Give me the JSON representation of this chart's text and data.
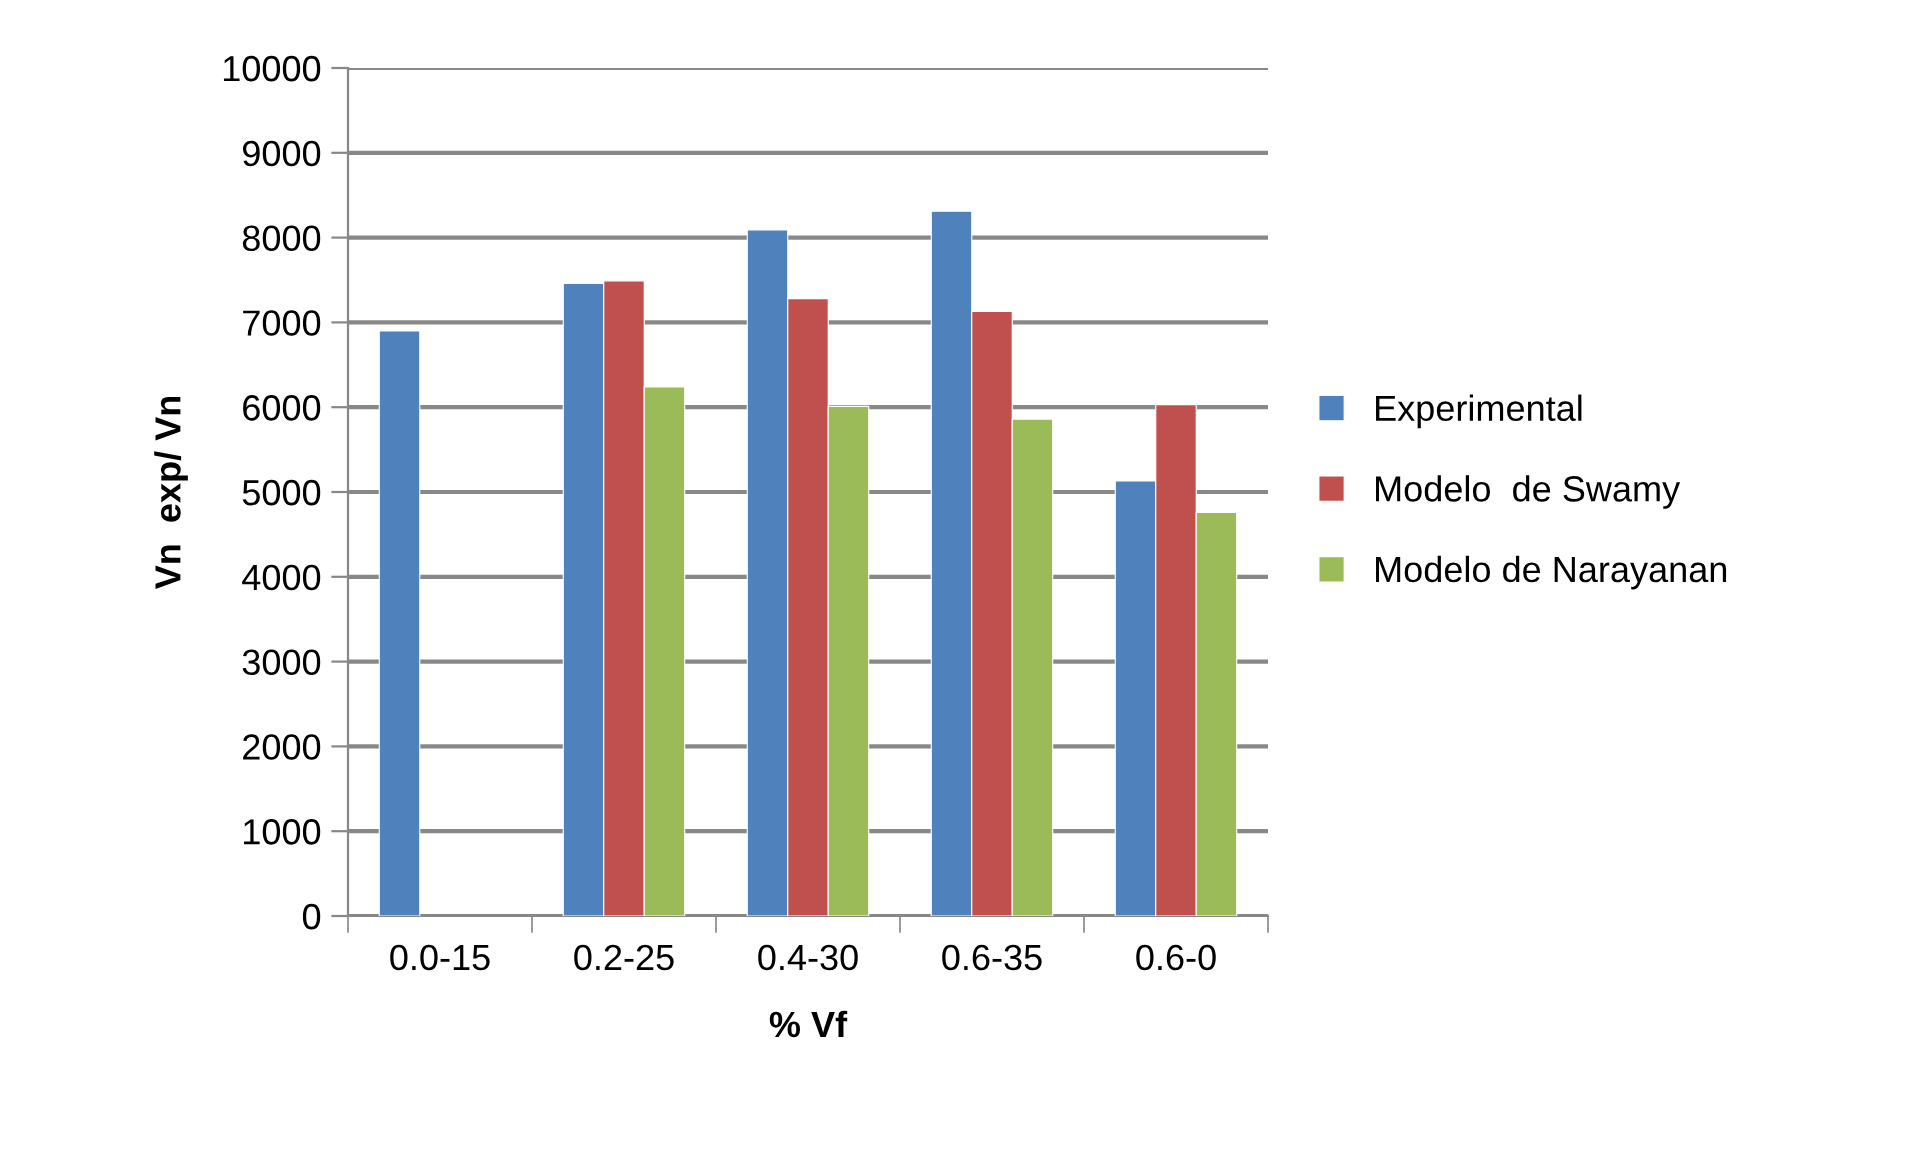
{
  "chart_data": {
    "type": "bar",
    "xlabel": "% Vf",
    "ylabel": "Vn  exp/ Vn",
    "categories": [
      "0.0-15",
      "0.2-25",
      "0.4-30",
      "0.6-35",
      "0.6-0"
    ],
    "series": [
      {
        "name": "Experimental",
        "color": "#4f81bd",
        "values": [
          6900,
          7460,
          8090,
          8310,
          5130
        ]
      },
      {
        "name": "Modelo  de Swamy",
        "color": "#c0504d",
        "values": [
          null,
          7490,
          7280,
          7130,
          6030
        ]
      },
      {
        "name": "Modelo de Narayanan",
        "color": "#9bbb59",
        "values": [
          null,
          6240,
          6010,
          5860,
          4760
        ]
      }
    ],
    "ylim": [
      0,
      10000
    ],
    "yticks": [
      0,
      1000,
      2000,
      3000,
      4000,
      5000,
      6000,
      7000,
      8000,
      9000,
      10000
    ],
    "grid": "y",
    "legend": "right"
  }
}
